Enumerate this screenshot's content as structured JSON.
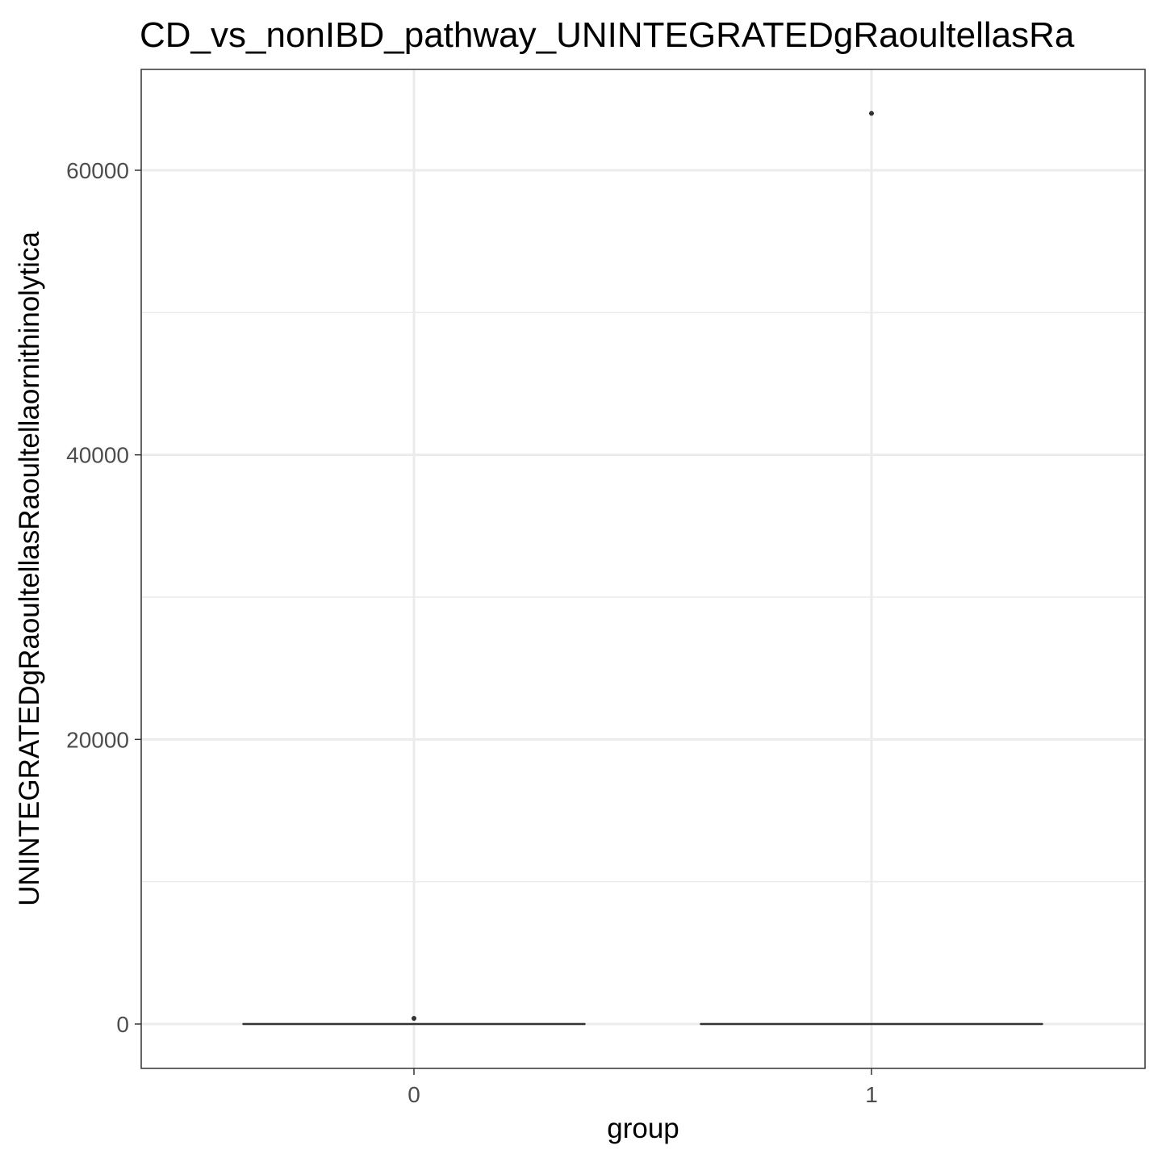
{
  "chart_data": {
    "type": "box",
    "title": "CD_vs_nonIBD_pathway_UNINTEGRATEDgRaoultellasRa",
    "xlabel": "group",
    "ylabel": "UNINTEGRATEDgRaoultellasRaoultellaornithinolytica",
    "categories": [
      "0",
      "1"
    ],
    "ylim": [
      -3000,
      66000
    ],
    "y_ticks": [
      0,
      20000,
      40000,
      60000
    ],
    "y_tick_labels": [
      "0",
      "20000",
      "40000",
      "60000"
    ],
    "y_minor_ticks": [
      10000,
      30000,
      50000
    ],
    "grid": true,
    "boxes": [
      {
        "group": "0",
        "min": 0,
        "q1": 0,
        "median": 0,
        "q3": 0,
        "max": 0,
        "outliers": [
          400
        ]
      },
      {
        "group": "1",
        "min": 0,
        "q1": 0,
        "median": 0,
        "q3": 0,
        "max": 0,
        "outliers": [
          64000
        ]
      }
    ],
    "colors": {
      "panel_border": "#333333",
      "grid": "#ebebeb",
      "box_line": "#333333",
      "point": "#333333"
    }
  }
}
